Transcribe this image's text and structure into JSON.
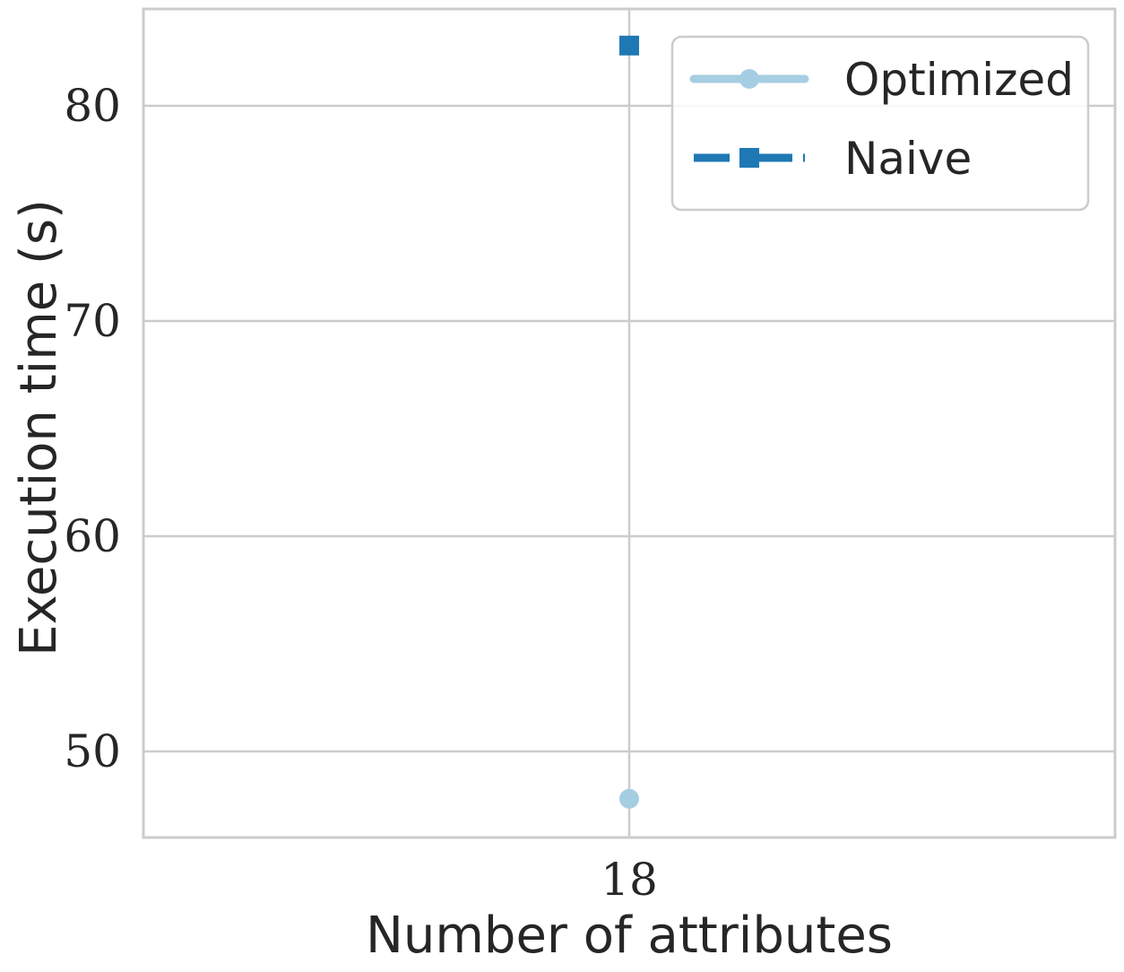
{
  "chart_data": {
    "type": "line",
    "xlabel": "Number of attributes",
    "ylabel": "Execution time (s)",
    "categories": [
      "18"
    ],
    "x": [
      18
    ],
    "ylim": [
      46,
      84.5
    ],
    "yticks": [
      50,
      60,
      70,
      80
    ],
    "grid": true,
    "legend_position": "top-right",
    "series": [
      {
        "name": "Optimized",
        "values": [
          47.8
        ],
        "color": "#a6cee3",
        "marker": "circle",
        "linestyle": "solid"
      },
      {
        "name": "Naive",
        "values": [
          82.8
        ],
        "color": "#1f78b4",
        "marker": "square",
        "linestyle": "dashdot"
      }
    ]
  }
}
